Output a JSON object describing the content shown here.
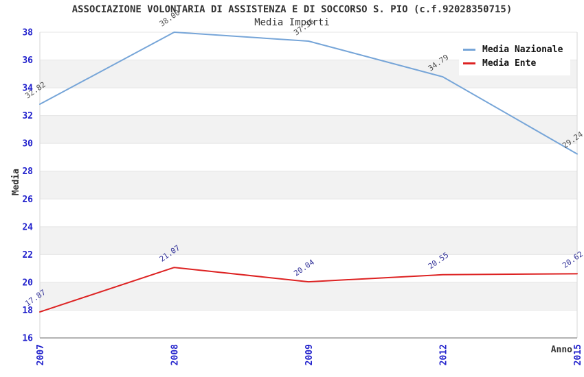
{
  "header": {
    "title": "ASSOCIAZIONE VOLONTARIA DI ASSISTENZA E DI SOCCORSO S. PIO (c.f.92028350715)",
    "subtitle": "Media Importi"
  },
  "chart_data": {
    "type": "line",
    "title": "ASSOCIAZIONE VOLONTARIA DI ASSISTENZA E DI SOCCORSO S. PIO (c.f.92028350715)",
    "subtitle": "Media Importi",
    "xlabel": "Anno",
    "ylabel": "Media",
    "categories": [
      "2007",
      "2008",
      "2009",
      "2012",
      "2015"
    ],
    "series": [
      {
        "name": "Media Nazionale",
        "color": "#76a5d8",
        "label_color": "#4d4d4d",
        "values": [
          32.82,
          38.0,
          37.36,
          34.79,
          29.24
        ]
      },
      {
        "name": "Media Ente",
        "color": "#dd2222",
        "label_color": "#333399",
        "values": [
          17.87,
          21.07,
          20.04,
          20.55,
          20.62
        ]
      }
    ],
    "ylim": [
      16,
      38
    ],
    "ytick_step": 2,
    "yticks": [
      16,
      18,
      20,
      22,
      24,
      26,
      28,
      30,
      32,
      34,
      36,
      38
    ],
    "grid": "horizontal-bands",
    "legend_position": "top-right"
  },
  "colors": {
    "tick_label": "#2222cc",
    "band_gray": "#f2f2f2",
    "band_white": "#ffffff",
    "gridline": "#e4e4e4",
    "plot_border": "#d6d6d6",
    "axis_line": "#999999",
    "title_text": "#333333",
    "legend_text": "#111111"
  }
}
